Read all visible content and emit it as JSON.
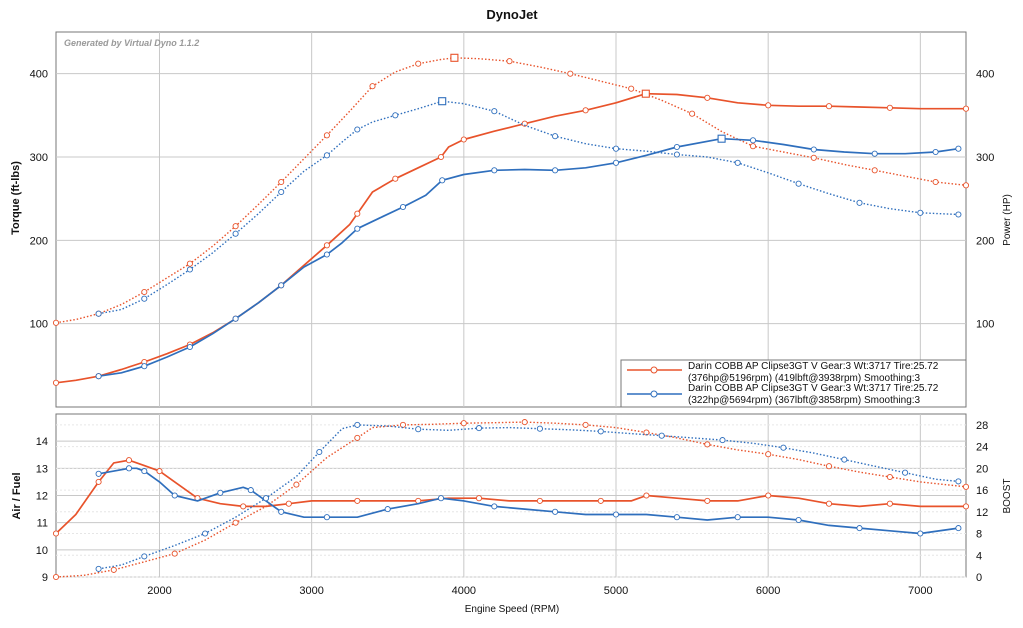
{
  "chart_data": [
    {
      "type": "line",
      "title": "DynoJet",
      "watermark": "Generated by Virtual Dyno 1.1.2",
      "xlabel": "",
      "ylabel_left": "Torque (ft-lbs)",
      "ylabel_right": "Power (HP)",
      "xlim": [
        1320,
        7300
      ],
      "ylim_left": [
        0,
        450
      ],
      "ylim_right": [
        0,
        450
      ],
      "yticks_left": [
        100,
        200,
        300,
        400
      ],
      "yticks_right": [
        100,
        200,
        300,
        400
      ],
      "grid": true,
      "legend_position": "bottom-right",
      "legend": [
        {
          "line1": "Darin COBB AP Clipse3GT V Gear:3 Wt:3717 Tire:25.72",
          "line2": "(376hp@5196rpm) (419lbft@3938rpm) Smoothing:3",
          "color": "#e8532b"
        },
        {
          "line1": "Darin COBB AP Clipse3GT V Gear:3 Wt:3717 Tire:25.72",
          "line2": "(322hp@5694rpm) (367lbft@3858rpm) Smoothing:3",
          "color": "#2f6fbd"
        }
      ],
      "series": [
        {
          "kind": "torque",
          "style": "dotted",
          "color": "#e8532b",
          "axis": "left",
          "x": [
            1320,
            1450,
            1600,
            1750,
            1900,
            2050,
            2200,
            2350,
            2500,
            2650,
            2800,
            2950,
            3100,
            3250,
            3400,
            3550,
            3700,
            3850,
            3938,
            4100,
            4300,
            4500,
            4700,
            4900,
            5100,
            5300,
            5500,
            5700,
            5900,
            6100,
            6300,
            6500,
            6700,
            6900,
            7100,
            7300
          ],
          "y": [
            101,
            105,
            112,
            123,
            138,
            155,
            172,
            193,
            217,
            243,
            270,
            298,
            326,
            355,
            385,
            402,
            412,
            417,
            419,
            418,
            415,
            408,
            400,
            391,
            382,
            368,
            352,
            330,
            313,
            306,
            299,
            291,
            284,
            277,
            270,
            266
          ]
        },
        {
          "kind": "power",
          "style": "solid",
          "color": "#e8532b",
          "axis": "right",
          "x": [
            1320,
            1450,
            1600,
            1750,
            1900,
            2050,
            2200,
            2350,
            2500,
            2650,
            2800,
            2950,
            3100,
            3250,
            3300,
            3400,
            3550,
            3700,
            3850,
            3900,
            4000,
            4200,
            4400,
            4600,
            4800,
            5000,
            5196,
            5400,
            5600,
            5800,
            6000,
            6200,
            6400,
            6600,
            6800,
            7000,
            7300
          ],
          "y": [
            29,
            32,
            37,
            45,
            54,
            64,
            75,
            89,
            106,
            125,
            146,
            170,
            194,
            219,
            232,
            258,
            274,
            287,
            300,
            312,
            321,
            331,
            340,
            349,
            356,
            365,
            376,
            375,
            371,
            365,
            362,
            361,
            361,
            360,
            359,
            358,
            358
          ]
        },
        {
          "kind": "torque",
          "style": "dotted",
          "color": "#2f6fbd",
          "axis": "left",
          "x": [
            1600,
            1750,
            1900,
            2050,
            2200,
            2350,
            2500,
            2650,
            2800,
            2950,
            3100,
            3200,
            3300,
            3400,
            3550,
            3700,
            3858,
            4000,
            4200,
            4400,
            4600,
            4800,
            5000,
            5200,
            5400,
            5600,
            5800,
            6000,
            6200,
            6400,
            6600,
            6800,
            7000,
            7250
          ],
          "y": [
            112,
            117,
            130,
            147,
            165,
            185,
            208,
            232,
            258,
            283,
            302,
            318,
            333,
            342,
            350,
            358,
            367,
            364,
            355,
            338,
            325,
            316,
            310,
            307,
            303,
            300,
            293,
            281,
            268,
            256,
            245,
            238,
            233,
            231
          ]
        },
        {
          "kind": "power",
          "style": "solid",
          "color": "#2f6fbd",
          "axis": "right",
          "x": [
            1600,
            1750,
            1900,
            2050,
            2200,
            2350,
            2500,
            2650,
            2800,
            2950,
            3100,
            3200,
            3300,
            3450,
            3600,
            3750,
            3858,
            4000,
            4200,
            4400,
            4600,
            4800,
            5000,
            5200,
            5400,
            5694,
            5900,
            6100,
            6300,
            6500,
            6700,
            6900,
            7100,
            7250
          ],
          "y": [
            37,
            41,
            49,
            60,
            72,
            88,
            106,
            125,
            146,
            168,
            183,
            197,
            214,
            227,
            240,
            254,
            272,
            279,
            284,
            285,
            284,
            287,
            293,
            302,
            312,
            322,
            320,
            315,
            309,
            306,
            304,
            304,
            306,
            310
          ]
        }
      ]
    },
    {
      "type": "line",
      "xlabel": "Engine Speed (RPM)",
      "ylabel_left": "Air / Fuel",
      "ylabel_right": "BOOST",
      "xlim": [
        1320,
        7300
      ],
      "xticks": [
        2000,
        3000,
        4000,
        5000,
        6000,
        7000
      ],
      "ylim_left": [
        9,
        15
      ],
      "ylim_right": [
        0,
        30
      ],
      "yticks_left": [
        9,
        10,
        11,
        12,
        13,
        14
      ],
      "yticks_right": [
        0,
        4,
        8,
        12,
        16,
        20,
        24,
        28
      ],
      "grid": true,
      "series": [
        {
          "kind": "air_fuel",
          "style": "solid",
          "color": "#e8532b",
          "axis": "left",
          "x": [
            1320,
            1450,
            1600,
            1700,
            1800,
            1900,
            2000,
            2100,
            2250,
            2400,
            2550,
            2700,
            2850,
            3000,
            3300,
            3500,
            3700,
            3900,
            4100,
            4300,
            4500,
            4700,
            4900,
            5100,
            5200,
            5400,
            5600,
            5800,
            6000,
            6200,
            6400,
            6600,
            6800,
            7000,
            7300
          ],
          "y": [
            10.6,
            11.3,
            12.5,
            13.2,
            13.3,
            13.1,
            12.9,
            12.5,
            11.9,
            11.7,
            11.6,
            11.6,
            11.7,
            11.8,
            11.8,
            11.8,
            11.8,
            11.9,
            11.9,
            11.8,
            11.8,
            11.8,
            11.8,
            11.8,
            12.0,
            11.9,
            11.8,
            11.8,
            12.0,
            11.9,
            11.7,
            11.6,
            11.7,
            11.6,
            11.6
          ]
        },
        {
          "kind": "boost",
          "style": "dotted",
          "color": "#e8532b",
          "axis": "right",
          "x": [
            1320,
            1500,
            1700,
            1900,
            2100,
            2300,
            2500,
            2700,
            2900,
            3100,
            3300,
            3400,
            3600,
            3800,
            4000,
            4200,
            4400,
            4600,
            4800,
            5000,
            5200,
            5400,
            5600,
            5800,
            6000,
            6200,
            6400,
            6600,
            6800,
            7000,
            7300
          ],
          "y": [
            0,
            0.3,
            1.3,
            2.8,
            4.3,
            6.8,
            10,
            13,
            17,
            22,
            25.6,
            27.5,
            28,
            28.1,
            28.3,
            28.4,
            28.5,
            28.3,
            28,
            27.5,
            26.6,
            25.6,
            24.4,
            23.4,
            22.6,
            21.6,
            20.4,
            19.3,
            18.4,
            17.5,
            16.6
          ]
        },
        {
          "kind": "air_fuel",
          "style": "solid",
          "color": "#2f6fbd",
          "axis": "left",
          "x": [
            1600,
            1700,
            1800,
            1850,
            1900,
            2000,
            2100,
            2250,
            2400,
            2550,
            2600,
            2700,
            2800,
            2950,
            3100,
            3300,
            3500,
            3700,
            3850,
            4000,
            4200,
            4400,
            4600,
            4800,
            5000,
            5200,
            5400,
            5600,
            5800,
            6000,
            6200,
            6400,
            6600,
            6800,
            7000,
            7250
          ],
          "y": [
            12.8,
            12.9,
            13.0,
            13.0,
            12.9,
            12.5,
            12.0,
            11.8,
            12.1,
            12.3,
            12.2,
            11.8,
            11.4,
            11.2,
            11.2,
            11.2,
            11.5,
            11.7,
            11.9,
            11.8,
            11.6,
            11.5,
            11.4,
            11.3,
            11.3,
            11.3,
            11.2,
            11.1,
            11.2,
            11.2,
            11.1,
            10.9,
            10.8,
            10.7,
            10.6,
            10.8
          ]
        },
        {
          "kind": "boost",
          "style": "dotted",
          "color": "#2f6fbd",
          "axis": "right",
          "x": [
            1600,
            1750,
            1900,
            2100,
            2300,
            2500,
            2700,
            2900,
            3050,
            3200,
            3300,
            3500,
            3700,
            3900,
            4100,
            4300,
            4500,
            4700,
            4900,
            5100,
            5300,
            5500,
            5700,
            5900,
            6100,
            6300,
            6500,
            6700,
            6900,
            7100,
            7250
          ],
          "y": [
            1.5,
            2.2,
            3.8,
            5.8,
            8,
            11,
            14.5,
            18.5,
            23,
            27.3,
            28,
            27.8,
            27.2,
            27,
            27.4,
            27.5,
            27.3,
            27.1,
            26.8,
            26.4,
            26,
            25.6,
            25.2,
            24.6,
            23.8,
            22.8,
            21.6,
            20.4,
            19.2,
            18,
            17.6
          ]
        }
      ]
    }
  ]
}
